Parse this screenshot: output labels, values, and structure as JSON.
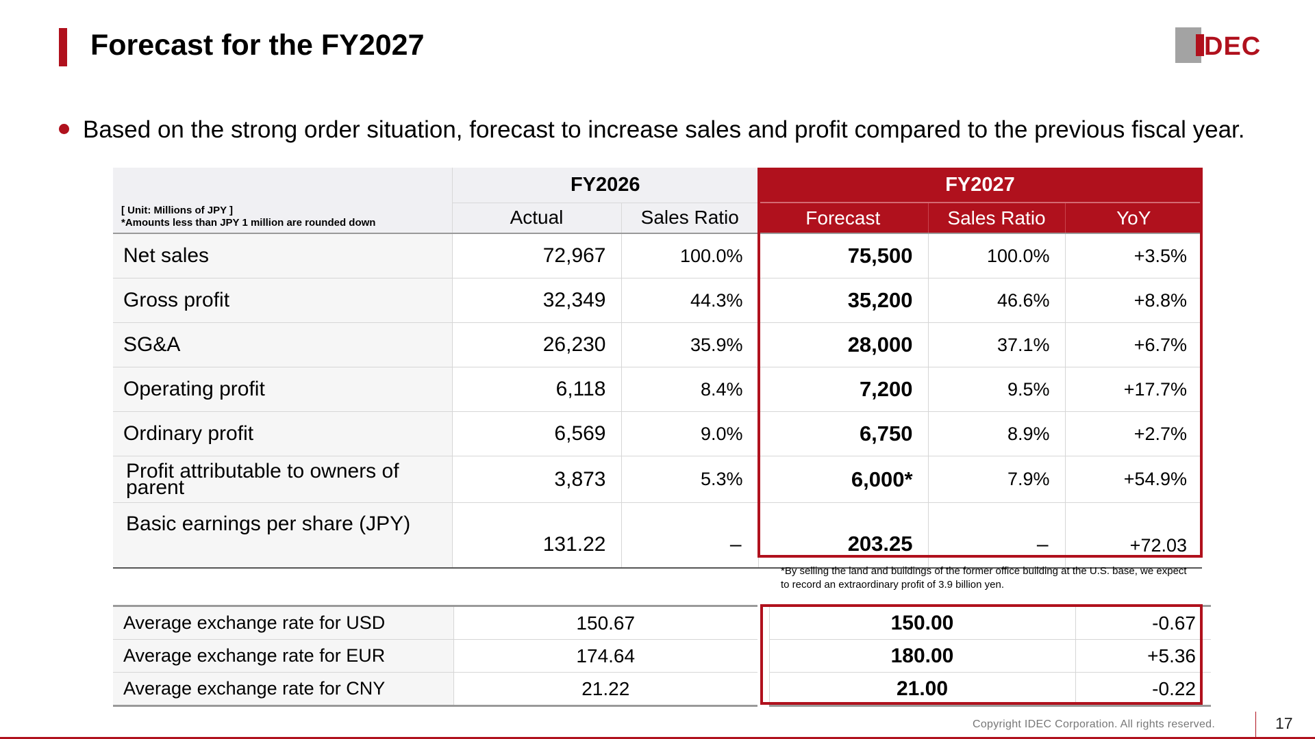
{
  "slide": {
    "title": "Forecast for the FY2027",
    "bullet": "Based on the strong order situation, forecast to increase sales and profit compared to the previous fiscal year.",
    "logo_text": "IDEC",
    "copyright": "Copyright IDEC Corporation. All rights reserved.",
    "page_number": "17",
    "accent_color": "#b0111d"
  },
  "table": {
    "unit_note": "[ Unit: Millions of JPY ]",
    "rounding_note": "*Amounts less than JPY 1 million are rounded down",
    "fy2026": {
      "label": "FY2026",
      "col_actual": "Actual",
      "col_ratio": "Sales Ratio"
    },
    "fy2027": {
      "label": "FY2027",
      "col_forecast": "Forecast",
      "col_ratio": "Sales Ratio",
      "col_yoy": "YoY"
    },
    "rows": [
      {
        "label": "Net sales",
        "actual": "72,967",
        "actual_ratio": "100.0%",
        "forecast": "75,500",
        "forecast_ratio": "100.0%",
        "yoy": "+3.5%"
      },
      {
        "label": "Gross profit",
        "actual": "32,349",
        "actual_ratio": "44.3%",
        "forecast": "35,200",
        "forecast_ratio": "46.6%",
        "yoy": "+8.8%"
      },
      {
        "label": "SG&A",
        "actual": "26,230",
        "actual_ratio": "35.9%",
        "forecast": "28,000",
        "forecast_ratio": "37.1%",
        "yoy": "+6.7%"
      },
      {
        "label": "Operating profit",
        "actual": "6,118",
        "actual_ratio": "8.4%",
        "forecast": "7,200",
        "forecast_ratio": "9.5%",
        "yoy": "+17.7%"
      },
      {
        "label": "Ordinary profit",
        "actual": "6,569",
        "actual_ratio": "9.0%",
        "forecast": "6,750",
        "forecast_ratio": "8.9%",
        "yoy": "+2.7%"
      },
      {
        "label": "Profit attributable to owners of parent",
        "actual": "3,873",
        "actual_ratio": "5.3%",
        "forecast": "6,000*",
        "forecast_ratio": "7.9%",
        "yoy": "+54.9%"
      },
      {
        "label": "Basic earnings per share (JPY)",
        "actual": "131.22",
        "actual_ratio": "–",
        "forecast": "203.25",
        "forecast_ratio": "–",
        "yoy": "+72.03"
      }
    ]
  },
  "footnote": "*By selling the land and buildings of the former office building at the U.S. base, we expect to record an extraordinary profit of 3.9 billion yen.",
  "fx_table": {
    "rows": [
      {
        "label": "Average exchange rate for USD",
        "fy2026": "150.67",
        "fy2027": "150.00",
        "change": "-0.67"
      },
      {
        "label": "Average exchange rate for EUR",
        "fy2026": "174.64",
        "fy2027": "180.00",
        "change": "+5.36"
      },
      {
        "label": "Average exchange rate for CNY",
        "fy2026": "21.22",
        "fy2027": "21.00",
        "change": "-0.22"
      }
    ]
  }
}
